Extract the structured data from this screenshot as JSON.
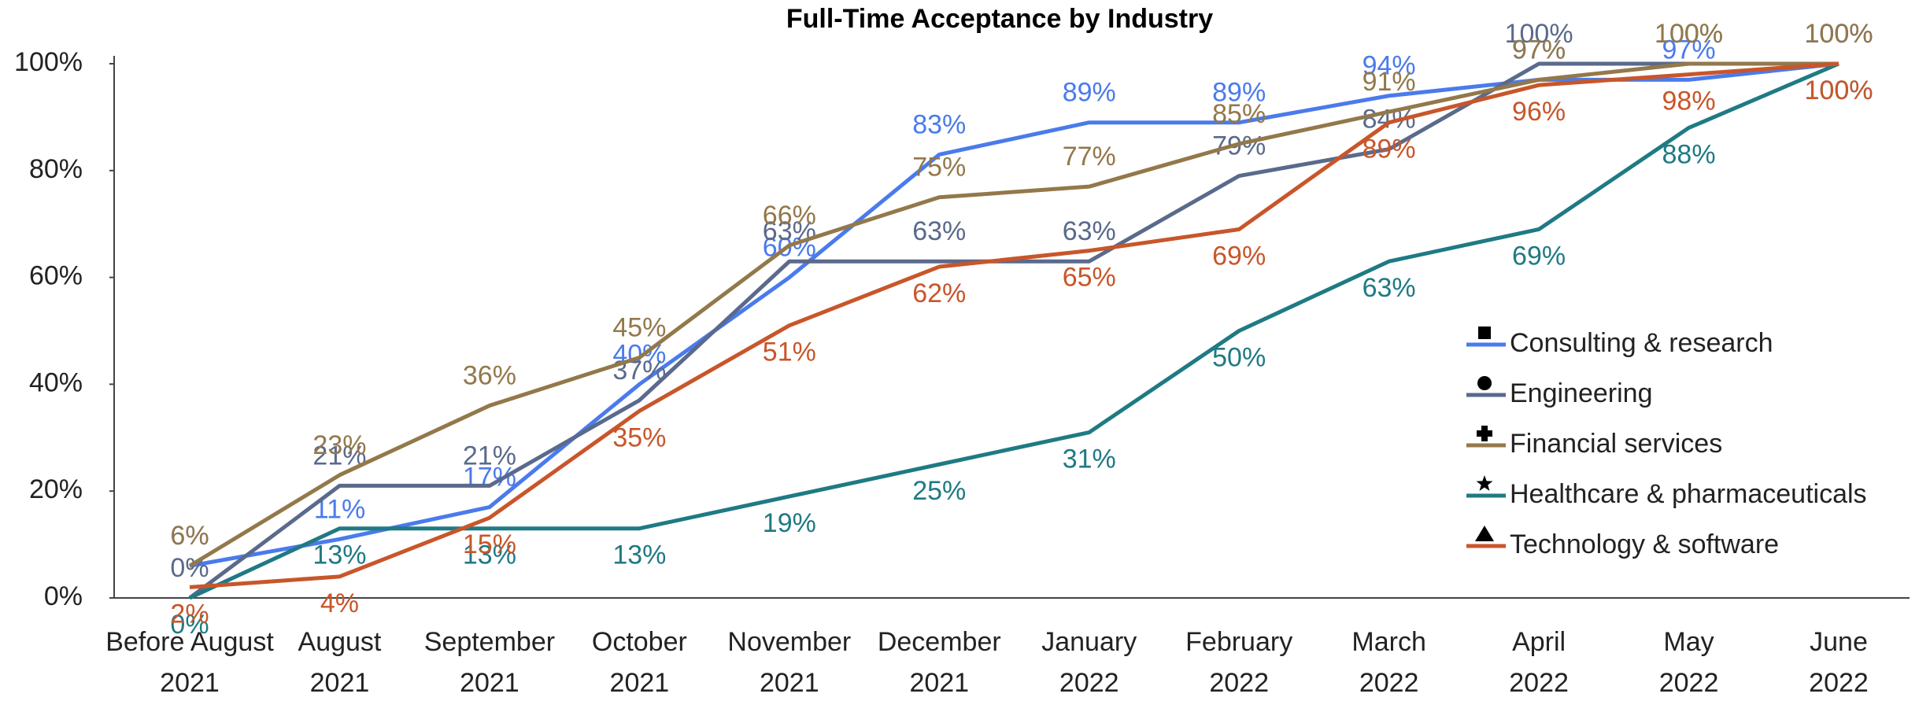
{
  "chart_data": {
    "type": "line",
    "title": "Full-Time Acceptance by Industry",
    "categories": [
      [
        "Before August",
        "2021"
      ],
      [
        "August",
        "2021"
      ],
      [
        "September",
        "2021"
      ],
      [
        "October",
        "2021"
      ],
      [
        "November",
        "2021"
      ],
      [
        "December",
        "2021"
      ],
      [
        "January",
        "2022"
      ],
      [
        "February",
        "2022"
      ],
      [
        "March",
        "2022"
      ],
      [
        "April",
        "2022"
      ],
      [
        "May",
        "2022"
      ],
      [
        "June",
        "2022"
      ]
    ],
    "ylim": [
      0,
      100
    ],
    "yticks": [
      {
        "value": 0,
        "label": "0%"
      },
      {
        "value": 20,
        "label": "20%"
      },
      {
        "value": 40,
        "label": "40%"
      },
      {
        "value": 60,
        "label": "60%"
      },
      {
        "value": 80,
        "label": "80%"
      },
      {
        "value": 100,
        "label": "100%"
      }
    ],
    "legend": "right",
    "series": [
      {
        "name": "Consulting & research",
        "color": "#4a7bec",
        "marker": "square",
        "label_position": "above",
        "values": [
          6,
          11,
          17,
          40,
          60,
          83,
          89,
          89,
          94,
          97,
          97,
          100
        ],
        "value_labels": [
          "6%",
          "11%",
          "17%",
          "40%",
          "60%",
          "83%",
          "89%",
          "89%",
          "94%",
          "97%",
          "97%",
          "100%"
        ]
      },
      {
        "name": "Engineering",
        "color": "#5a6a8c",
        "marker": "circle",
        "label_position": "above",
        "values": [
          0,
          21,
          21,
          37,
          63,
          63,
          63,
          79,
          84,
          100,
          100,
          100
        ],
        "value_labels": [
          "0%",
          "21%",
          "21%",
          "37%",
          "63%",
          "63%",
          "63%",
          "79%",
          "84%",
          "100%",
          "100%",
          "100%"
        ]
      },
      {
        "name": "Financial services",
        "color": "#93784a",
        "marker": "plus",
        "label_position": "above",
        "values": [
          6,
          23,
          36,
          45,
          66,
          75,
          77,
          85,
          91,
          97,
          100,
          100
        ],
        "value_labels": [
          "6%",
          "23%",
          "36%",
          "45%",
          "66%",
          "75%",
          "77%",
          "85%",
          "91%",
          "97%",
          "100%",
          "100%"
        ]
      },
      {
        "name": "Healthcare & pharmaceuticals",
        "color": "#1f7a84",
        "marker": "star",
        "label_position": "below",
        "values": [
          0,
          13,
          13,
          13,
          19,
          25,
          31,
          50,
          63,
          69,
          88,
          100
        ],
        "value_labels": [
          "0%",
          "13%",
          "13%",
          "13%",
          "19%",
          "25%",
          "31%",
          "50%",
          "63%",
          "69%",
          "88%",
          "100%"
        ]
      },
      {
        "name": "Technology & software",
        "color": "#c8562a",
        "marker": "triangle",
        "label_position": "below",
        "values": [
          2,
          4,
          15,
          35,
          51,
          62,
          65,
          69,
          89,
          96,
          98,
          100
        ],
        "value_labels": [
          "2%",
          "4%",
          "15%",
          "35%",
          "51%",
          "62%",
          "65%",
          "69%",
          "89%",
          "96%",
          "98%",
          "100%"
        ]
      }
    ]
  }
}
